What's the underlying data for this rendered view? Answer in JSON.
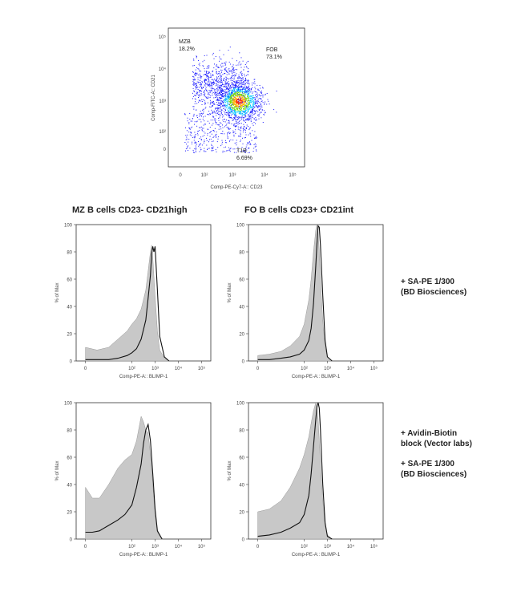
{
  "chart_data": [
    {
      "type": "scatter",
      "id": "dotplot",
      "xlabel": "Comp-PE-Cy7-A:: CD23",
      "ylabel": "Comp-FITC-A:: CD21",
      "xticks": [
        "0",
        "10²",
        "10³",
        "10⁴",
        "10⁵"
      ],
      "yticks": [
        "0",
        "10²",
        "10³",
        "10⁴",
        "10⁵"
      ],
      "gates": [
        {
          "name": "MZB",
          "value": "18.2%"
        },
        {
          "name": "FOB",
          "value": "73.1%"
        },
        {
          "name": "T1B",
          "value": "6.69%"
        }
      ]
    },
    {
      "type": "area",
      "id": "hist-mz-1",
      "title": "MZ B cells CD23- CD21high",
      "xlabel": "Comp-PE-A:: BLIMP-1",
      "ylabel": "% of Max",
      "xticks": [
        "0",
        "10²",
        "10³",
        "10⁴",
        "10⁵"
      ],
      "yticks": [
        "0",
        "20",
        "40",
        "60",
        "80",
        "100"
      ],
      "ylim": [
        0,
        100
      ],
      "x_log": [
        0.0,
        0.5,
        1.0,
        1.4,
        1.8,
        2.0,
        2.2,
        2.4,
        2.6,
        2.7,
        2.8,
        2.85,
        2.9,
        2.95,
        3.0,
        3.1,
        3.2,
        3.4,
        3.6
      ],
      "series": [
        {
          "values": [
            10,
            8,
            10,
            16,
            22,
            27,
            31,
            38,
            52,
            66,
            80,
            85,
            76,
            62,
            48,
            22,
            8,
            2,
            0
          ]
        },
        {
          "values": [
            1,
            1,
            1,
            2,
            4,
            6,
            9,
            16,
            30,
            46,
            63,
            78,
            84,
            80,
            84,
            52,
            18,
            3,
            0
          ]
        }
      ]
    },
    {
      "type": "area",
      "id": "hist-fo-1",
      "title": "FO B cells CD23+ CD21int",
      "xlabel": "Comp-PE-A:: BLIMP-1",
      "ylabel": "% of Max",
      "xticks": [
        "0",
        "10²",
        "10³",
        "10⁴",
        "10⁵"
      ],
      "yticks": [
        "0",
        "20",
        "40",
        "60",
        "80",
        "100"
      ],
      "ylim": [
        0,
        100
      ],
      "x_log": [
        0.0,
        0.5,
        1.0,
        1.4,
        1.8,
        2.0,
        2.2,
        2.3,
        2.4,
        2.5,
        2.55,
        2.6,
        2.65,
        2.7,
        2.8,
        2.9,
        3.0,
        3.2
      ],
      "series": [
        {
          "values": [
            4,
            5,
            7,
            11,
            18,
            27,
            45,
            60,
            80,
            96,
            100,
            95,
            80,
            60,
            30,
            10,
            3,
            0
          ]
        },
        {
          "values": [
            1,
            1,
            2,
            3,
            5,
            8,
            15,
            24,
            42,
            70,
            86,
            99,
            98,
            85,
            48,
            15,
            3,
            0
          ]
        }
      ]
    },
    {
      "type": "area",
      "id": "hist-mz-2",
      "xlabel": "Comp-PE-A:: BLIMP-1",
      "ylabel": "% of Max",
      "xticks": [
        "0",
        "10²",
        "10³",
        "10⁴",
        "10⁵"
      ],
      "yticks": [
        "0",
        "20",
        "40",
        "60",
        "80",
        "100"
      ],
      "ylim": [
        0,
        100
      ],
      "x_log": [
        0.0,
        0.3,
        0.6,
        1.0,
        1.4,
        1.7,
        2.0,
        2.2,
        2.4,
        2.5,
        2.6,
        2.7,
        2.8,
        2.9,
        3.0,
        3.1,
        3.3
      ],
      "series": [
        {
          "values": [
            38,
            30,
            30,
            40,
            52,
            58,
            62,
            72,
            90,
            86,
            80,
            78,
            62,
            40,
            18,
            5,
            0
          ]
        },
        {
          "values": [
            5,
            5,
            6,
            10,
            14,
            18,
            25,
            38,
            55,
            70,
            80,
            84,
            72,
            48,
            22,
            6,
            0
          ]
        }
      ]
    },
    {
      "type": "area",
      "id": "hist-fo-2",
      "xlabel": "Comp-PE-A:: BLIMP-1",
      "ylabel": "% of Max",
      "xticks": [
        "0",
        "10²",
        "10³",
        "10⁴",
        "10⁵"
      ],
      "yticks": [
        "0",
        "20",
        "40",
        "60",
        "80",
        "100"
      ],
      "ylim": [
        0,
        100
      ],
      "x_log": [
        0.0,
        0.5,
        1.0,
        1.4,
        1.8,
        2.0,
        2.2,
        2.3,
        2.4,
        2.5,
        2.55,
        2.6,
        2.65,
        2.7,
        2.8,
        2.9,
        3.0,
        3.2
      ],
      "series": [
        {
          "values": [
            20,
            22,
            28,
            38,
            52,
            62,
            75,
            85,
            94,
            100,
            96,
            88,
            72,
            55,
            28,
            10,
            3,
            0
          ]
        },
        {
          "values": [
            2,
            3,
            5,
            8,
            12,
            18,
            32,
            48,
            68,
            88,
            97,
            100,
            96,
            80,
            40,
            12,
            2,
            0
          ]
        }
      ]
    }
  ],
  "side_notes": {
    "row1_line1": "+ SA-PE 1/300",
    "row1_line2": "(BD Biosciences)",
    "row2_line1": "+ Avidin-Biotin",
    "row2_line2": "block (Vector labs)",
    "row2_line3": "+ SA-PE 1/300",
    "row2_line4": "(BD Biosciences)"
  },
  "colors": {
    "filled_histogram": "#c8c8c8",
    "outline_histogram": "#111111",
    "dot_density_low": "#1a1aff",
    "dot_density_high": "#ff2a00"
  }
}
